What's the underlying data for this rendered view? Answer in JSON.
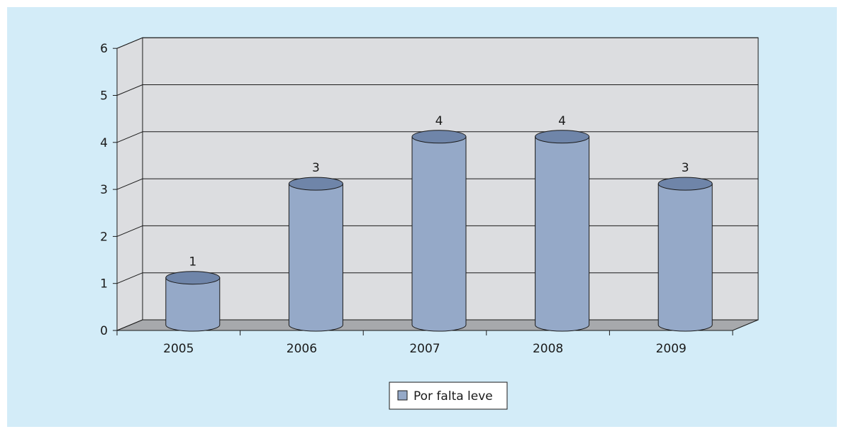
{
  "chart_data": {
    "type": "bar",
    "style": "3d-cylinder",
    "categories": [
      "2005",
      "2006",
      "2007",
      "2008",
      "2009"
    ],
    "series": [
      {
        "name": "Por falta leve",
        "values": [
          1,
          3,
          4,
          4,
          3
        ],
        "color": "#95a9c8"
      }
    ],
    "data_labels": [
      "1",
      "3",
      "4",
      "4",
      "3"
    ],
    "y_tick_labels": [
      "0",
      "1",
      "2",
      "3",
      "4",
      "5",
      "6"
    ],
    "ylim": [
      0,
      6
    ],
    "grid": true,
    "legend_position": "bottom",
    "title": "",
    "xlabel": "",
    "ylabel": ""
  },
  "colors": {
    "background": "#d3ecf8",
    "wall": "#dcdde0",
    "floor": "#a7a9ac",
    "bar": "#95a9c8",
    "bar_top": "#6f85a9",
    "outline": "#1a1a1a"
  }
}
